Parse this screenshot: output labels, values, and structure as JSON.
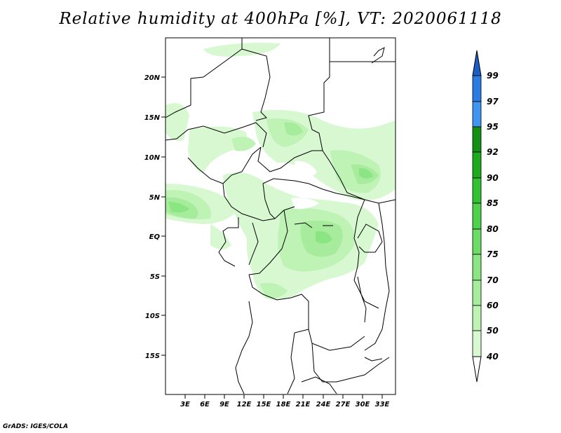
{
  "title": "Relative humidity at 400hPa [%], VT: 2020061118",
  "footer": "GrADS: IGES/COLA",
  "map": {
    "region": "Central Africa",
    "x_ticks": [
      "3E",
      "6E",
      "9E",
      "12E",
      "15E",
      "18E",
      "21E",
      "24E",
      "27E",
      "30E",
      "33E"
    ],
    "y_ticks": [
      "20N",
      "15N",
      "10N",
      "5N",
      "EQ",
      "5S",
      "10S",
      "15S"
    ]
  },
  "colorbar": {
    "labels": [
      "40",
      "50",
      "60",
      "70",
      "75",
      "80",
      "85",
      "90",
      "92",
      "95",
      "97",
      "99"
    ],
    "colors": [
      "#f0fff0",
      "#d8f8d2",
      "#bff3b6",
      "#a6ec9c",
      "#8be582",
      "#6ddc66",
      "#4fd14b",
      "#32c132",
      "#1ea91f",
      "#138f13",
      "#3f95f0",
      "#2b7be2",
      "#1b5fc6"
    ]
  }
}
